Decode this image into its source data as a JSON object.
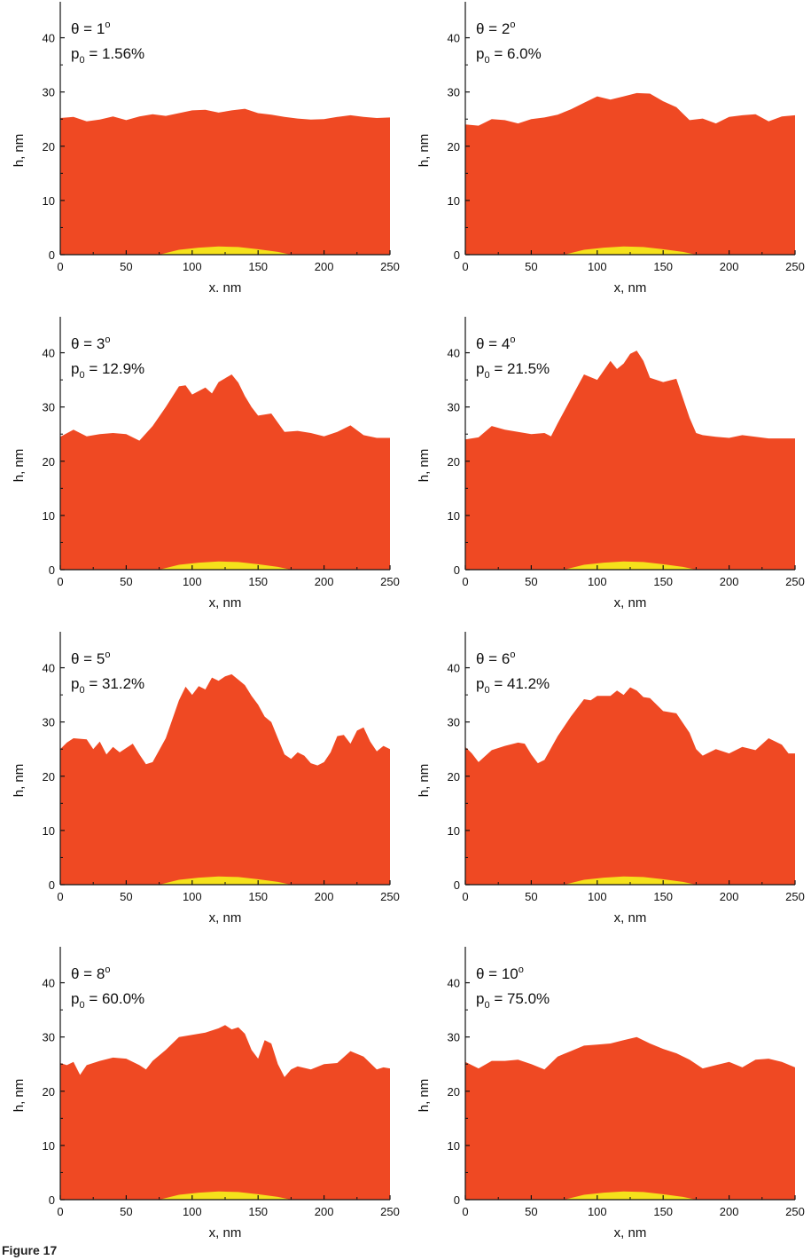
{
  "figure": {
    "caption": "Figure 17",
    "colors": {
      "film": "#ef4923",
      "nucleus": "#f5e11b",
      "axis": "#111111"
    }
  },
  "chart_data": [
    {
      "type": "area",
      "theta": "1",
      "p0": "1.56%",
      "xlabel": "x. nm",
      "ylabel": "h, nm",
      "xlim": [
        0,
        250
      ],
      "ylim": [
        0,
        45
      ],
      "xticks": [
        0,
        50,
        100,
        150,
        200,
        250
      ],
      "yticks": [
        0,
        10,
        20,
        30,
        40
      ],
      "series": [
        {
          "x": [
            0,
            10,
            20,
            30,
            40,
            50,
            60,
            70,
            80,
            90,
            100,
            110,
            120,
            130,
            140,
            150,
            160,
            170,
            180,
            190,
            200,
            210,
            220,
            230,
            240,
            250
          ],
          "y": [
            25.2,
            25.4,
            24.6,
            24.9,
            25.5,
            24.8,
            25.5,
            25.9,
            25.6,
            26.1,
            26.6,
            26.7,
            26.2,
            26.6,
            26.9,
            26.1,
            25.8,
            25.4,
            25.1,
            24.9,
            25.0,
            25.4,
            25.7,
            25.4,
            25.2,
            25.3
          ]
        },
        {
          "x": [
            75,
            90,
            105,
            120,
            135,
            150,
            165,
            175
          ],
          "y": [
            0,
            0.9,
            1.3,
            1.5,
            1.4,
            1.0,
            0.5,
            0
          ]
        }
      ]
    },
    {
      "type": "area",
      "theta": "2",
      "p0": "6.0%",
      "xlabel": "x, nm",
      "ylabel": "h, nm",
      "xlim": [
        0,
        250
      ],
      "ylim": [
        0,
        45
      ],
      "xticks": [
        0,
        50,
        100,
        150,
        200,
        250
      ],
      "yticks": [
        0,
        10,
        20,
        30,
        40
      ],
      "series": [
        {
          "x": [
            0,
            10,
            20,
            30,
            40,
            50,
            60,
            70,
            80,
            90,
            100,
            110,
            120,
            130,
            140,
            150,
            160,
            170,
            180,
            190,
            200,
            210,
            220,
            230,
            240,
            250
          ],
          "y": [
            24.0,
            23.8,
            25.0,
            24.8,
            24.2,
            25.0,
            25.3,
            25.8,
            26.8,
            28.0,
            29.2,
            28.6,
            29.2,
            29.8,
            29.7,
            28.3,
            27.2,
            24.8,
            25.1,
            24.2,
            25.4,
            25.7,
            25.9,
            24.6,
            25.5,
            25.7
          ]
        },
        {
          "x": [
            75,
            90,
            105,
            120,
            135,
            150,
            165,
            175
          ],
          "y": [
            0,
            0.9,
            1.3,
            1.5,
            1.4,
            1.0,
            0.5,
            0
          ]
        }
      ]
    },
    {
      "type": "area",
      "theta": "3",
      "p0": "12.9%",
      "xlabel": "x, nm",
      "ylabel": "h, nm",
      "xlim": [
        0,
        250
      ],
      "ylim": [
        0,
        45
      ],
      "xticks": [
        0,
        50,
        100,
        150,
        200,
        250
      ],
      "yticks": [
        0,
        10,
        20,
        30,
        40
      ],
      "series": [
        {
          "x": [
            0,
            10,
            20,
            30,
            40,
            50,
            60,
            70,
            80,
            90,
            95,
            100,
            110,
            115,
            120,
            130,
            135,
            140,
            145,
            150,
            160,
            170,
            180,
            190,
            200,
            210,
            220,
            230,
            240,
            250
          ],
          "y": [
            24.5,
            25.8,
            24.6,
            25.0,
            25.2,
            25.0,
            23.8,
            26.5,
            30.0,
            33.8,
            34.0,
            32.3,
            33.6,
            32.5,
            34.6,
            36.0,
            34.5,
            32.0,
            30.0,
            28.4,
            28.8,
            25.4,
            25.6,
            25.2,
            24.6,
            25.4,
            26.6,
            24.8,
            24.3,
            24.3
          ]
        },
        {
          "x": [
            75,
            90,
            105,
            120,
            135,
            150,
            165,
            175
          ],
          "y": [
            0,
            0.9,
            1.3,
            1.5,
            1.4,
            1.0,
            0.5,
            0
          ]
        }
      ]
    },
    {
      "type": "area",
      "theta": "4",
      "p0": "21.5%",
      "xlabel": "x, nm",
      "ylabel": "h, nm",
      "xlim": [
        0,
        250
      ],
      "ylim": [
        0,
        45
      ],
      "xticks": [
        0,
        50,
        100,
        150,
        200,
        250
      ],
      "yticks": [
        0,
        10,
        20,
        30,
        40
      ],
      "series": [
        {
          "x": [
            0,
            10,
            20,
            30,
            40,
            50,
            60,
            65,
            70,
            80,
            90,
            100,
            110,
            115,
            120,
            125,
            130,
            135,
            140,
            150,
            160,
            170,
            175,
            180,
            190,
            200,
            210,
            220,
            230,
            240,
            250
          ],
          "y": [
            24.0,
            24.4,
            26.5,
            25.8,
            25.4,
            25.0,
            25.2,
            24.6,
            27.0,
            31.5,
            36.0,
            35.0,
            38.5,
            37.0,
            38.0,
            39.8,
            40.4,
            38.5,
            35.4,
            34.6,
            35.2,
            28.0,
            25.2,
            24.8,
            24.5,
            24.3,
            24.8,
            24.5,
            24.2,
            24.2,
            24.2
          ]
        },
        {
          "x": [
            75,
            90,
            105,
            120,
            135,
            150,
            165,
            175
          ],
          "y": [
            0,
            0.9,
            1.3,
            1.5,
            1.4,
            1.0,
            0.5,
            0
          ]
        }
      ]
    },
    {
      "type": "area",
      "theta": "5",
      "p0": "31.2%",
      "xlabel": "x, nm",
      "ylabel": "h, nm",
      "xlim": [
        0,
        250
      ],
      "ylim": [
        0,
        45
      ],
      "xticks": [
        0,
        50,
        100,
        150,
        200,
        250
      ],
      "yticks": [
        0,
        10,
        20,
        30,
        40
      ],
      "series": [
        {
          "x": [
            0,
            5,
            10,
            20,
            25,
            30,
            35,
            40,
            45,
            50,
            55,
            60,
            65,
            70,
            80,
            90,
            95,
            100,
            105,
            110,
            115,
            120,
            125,
            130,
            135,
            140,
            145,
            150,
            155,
            160,
            165,
            170,
            175,
            180,
            185,
            190,
            195,
            200,
            205,
            210,
            215,
            220,
            225,
            230,
            235,
            240,
            245,
            250
          ],
          "y": [
            25.0,
            26.2,
            27.0,
            26.8,
            25.0,
            26.4,
            24.0,
            25.4,
            24.4,
            25.2,
            26.0,
            24.0,
            22.2,
            22.6,
            27.0,
            34.0,
            36.5,
            35.0,
            36.6,
            36.0,
            38.2,
            37.6,
            38.4,
            38.8,
            37.8,
            36.8,
            34.8,
            33.2,
            31.0,
            30.0,
            27.0,
            24.0,
            23.2,
            24.4,
            23.8,
            22.4,
            22.0,
            22.6,
            24.4,
            27.4,
            27.6,
            26.0,
            28.4,
            29.0,
            26.4,
            24.6,
            25.6,
            25.0
          ]
        },
        {
          "x": [
            75,
            90,
            105,
            120,
            135,
            150,
            165,
            175
          ],
          "y": [
            0,
            0.9,
            1.3,
            1.5,
            1.4,
            1.0,
            0.5,
            0
          ]
        }
      ]
    },
    {
      "type": "area",
      "theta": "6",
      "p0": "41.2%",
      "xlabel": "x, nm",
      "ylabel": "h, nm",
      "xlim": [
        0,
        250
      ],
      "ylim": [
        0,
        45
      ],
      "xticks": [
        0,
        50,
        100,
        150,
        200,
        250
      ],
      "yticks": [
        0,
        10,
        20,
        30,
        40
      ],
      "series": [
        {
          "x": [
            0,
            5,
            10,
            20,
            30,
            40,
            45,
            50,
            55,
            60,
            70,
            80,
            90,
            95,
            100,
            110,
            115,
            120,
            125,
            130,
            135,
            140,
            150,
            160,
            170,
            175,
            180,
            190,
            200,
            210,
            220,
            230,
            240,
            245,
            250
          ],
          "y": [
            25.4,
            24.2,
            22.6,
            24.8,
            25.6,
            26.2,
            26.0,
            24.0,
            22.4,
            23.0,
            27.4,
            31.0,
            34.2,
            34.0,
            34.8,
            34.8,
            35.8,
            35.0,
            36.4,
            35.8,
            34.6,
            34.4,
            32.0,
            31.6,
            28.0,
            25.0,
            23.8,
            25.0,
            24.2,
            25.4,
            24.8,
            27.0,
            25.8,
            24.2,
            24.2
          ]
        },
        {
          "x": [
            75,
            90,
            105,
            120,
            135,
            150,
            165,
            175
          ],
          "y": [
            0,
            0.9,
            1.3,
            1.5,
            1.4,
            1.0,
            0.5,
            0
          ]
        }
      ]
    },
    {
      "type": "area",
      "theta": "8",
      "p0": "60.0%",
      "xlabel": "x, nm",
      "ylabel": "h, nm",
      "xlim": [
        0,
        250
      ],
      "ylim": [
        0,
        45
      ],
      "xticks": [
        0,
        50,
        100,
        150,
        200,
        250
      ],
      "yticks": [
        0,
        10,
        20,
        30,
        40
      ],
      "series": [
        {
          "x": [
            0,
            5,
            10,
            15,
            20,
            30,
            40,
            50,
            60,
            65,
            70,
            80,
            90,
            100,
            110,
            120,
            125,
            130,
            135,
            140,
            145,
            150,
            155,
            160,
            165,
            170,
            175,
            180,
            190,
            200,
            210,
            220,
            230,
            240,
            245,
            250
          ],
          "y": [
            25.2,
            24.8,
            25.4,
            23.0,
            24.8,
            25.6,
            26.2,
            26.0,
            24.8,
            24.0,
            25.6,
            27.6,
            30.0,
            30.4,
            30.8,
            31.6,
            32.2,
            31.4,
            31.8,
            30.6,
            27.6,
            26.0,
            29.4,
            28.8,
            25.0,
            22.6,
            24.0,
            24.6,
            24.0,
            25.0,
            25.2,
            27.4,
            26.4,
            24.0,
            24.4,
            24.2
          ]
        },
        {
          "x": [
            75,
            90,
            105,
            120,
            135,
            150,
            165,
            175
          ],
          "y": [
            0,
            0.9,
            1.3,
            1.5,
            1.4,
            1.0,
            0.5,
            0
          ]
        }
      ]
    },
    {
      "type": "area",
      "theta": "10",
      "p0": "75.0%",
      "xlabel": "x, nm",
      "ylabel": "h, nm",
      "xlim": [
        0,
        250
      ],
      "ylim": [
        0,
        45
      ],
      "xticks": [
        0,
        50,
        100,
        150,
        200,
        250
      ],
      "yticks": [
        0,
        10,
        20,
        30,
        40
      ],
      "series": [
        {
          "x": [
            0,
            10,
            20,
            30,
            40,
            50,
            60,
            70,
            80,
            90,
            100,
            110,
            120,
            130,
            140,
            150,
            160,
            170,
            180,
            190,
            200,
            210,
            220,
            230,
            240,
            250
          ],
          "y": [
            25.4,
            24.2,
            25.6,
            25.6,
            25.8,
            25.0,
            24.0,
            26.4,
            27.4,
            28.4,
            28.6,
            28.8,
            29.4,
            30.0,
            28.8,
            27.8,
            27.0,
            25.8,
            24.2,
            24.8,
            25.4,
            24.4,
            25.8,
            26.0,
            25.4,
            24.4
          ]
        },
        {
          "x": [
            75,
            90,
            105,
            120,
            135,
            150,
            165,
            175
          ],
          "y": [
            0,
            0.9,
            1.3,
            1.5,
            1.4,
            1.0,
            0.5,
            0
          ]
        }
      ]
    }
  ]
}
